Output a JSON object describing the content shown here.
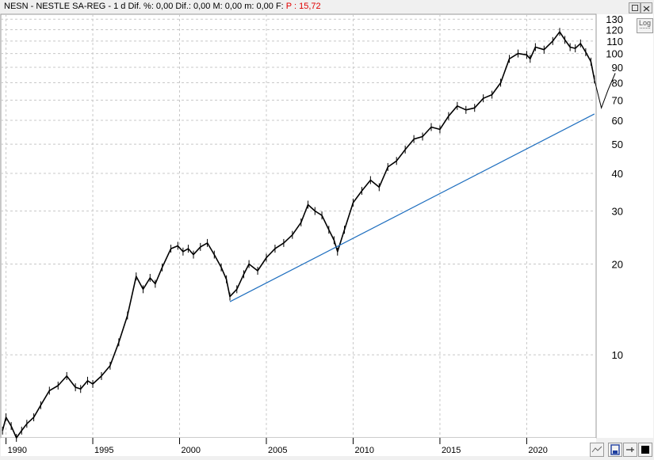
{
  "header": {
    "title": "NESN - NESTLE SA-REG -  1 d  Dif. %: 0,00  Dif.: 0,00  M: 0,00  m: 0,00  F:",
    "p_label": "P : 15,72"
  },
  "log_button": "Log",
  "colors": {
    "price": "#000000",
    "trendline": "#1f6fbf",
    "grid": "#c8c8c8",
    "pvalue": "#e00000"
  },
  "icons": [
    "restore-icon",
    "close-icon",
    "zoom-icon",
    "save-icon",
    "pin-icon",
    "color-swatch-icon"
  ],
  "chart_data": {
    "type": "line",
    "scale": "log",
    "grid": true,
    "ylim": [
      5.3,
      135
    ],
    "xlim": [
      1989.7,
      2024.0
    ],
    "y_ticks": [
      130,
      120,
      110,
      100,
      90,
      80,
      70,
      60,
      50,
      40,
      30,
      20,
      10
    ],
    "x_ticks": [
      "1990",
      "1995",
      "2000",
      "2005",
      "2010",
      "2015",
      "2020"
    ],
    "series": [
      {
        "x": [
          1989.8,
          1990.0,
          1990.3,
          1990.6,
          1990.9,
          1991.2,
          1991.6,
          1992.0,
          1992.5,
          1993.0,
          1993.5,
          1994.0,
          1994.3,
          1994.7,
          1995.0,
          1995.5,
          1996.0,
          1996.5,
          1997.0,
          1997.5,
          1997.9,
          1998.3,
          1998.6,
          1999.0,
          1999.5,
          1999.9,
          2000.2,
          2000.5,
          2000.8,
          2001.2,
          2001.6,
          2002.0,
          2002.4,
          2002.7,
          2002.9,
          2003.3,
          2003.7,
          2004.0,
          2004.5,
          2005.0,
          2005.5,
          2006.0,
          2006.5,
          2007.0,
          2007.4,
          2007.8,
          2008.2,
          2008.6,
          2008.9,
          2009.1,
          2009.5,
          2010.0,
          2010.5,
          2011.0,
          2011.5,
          2012.0,
          2012.5,
          2013.0,
          2013.5,
          2014.0,
          2014.5,
          2015.0,
          2015.5,
          2016.0,
          2016.5,
          2017.0,
          2017.5,
          2018.0,
          2018.5,
          2019.0,
          2019.5,
          2020.0,
          2020.2,
          2020.5,
          2021.0,
          2021.5,
          2021.9,
          2022.2,
          2022.5,
          2022.8,
          2023.1,
          2023.4,
          2023.7,
          2023.9
        ],
        "y": [
          5.6,
          6.2,
          5.8,
          5.3,
          5.6,
          5.9,
          6.2,
          6.8,
          7.6,
          7.9,
          8.5,
          7.8,
          7.7,
          8.2,
          8.0,
          8.5,
          9.2,
          11.0,
          13.5,
          18.2,
          16.5,
          18.0,
          17.2,
          19.5,
          22.5,
          23.0,
          22.0,
          22.5,
          21.5,
          22.8,
          23.5,
          21.5,
          19.5,
          17.8,
          15.6,
          16.5,
          18.5,
          20.0,
          19.0,
          21.0,
          22.5,
          23.5,
          25.0,
          27.5,
          31.5,
          30.0,
          29.0,
          26.0,
          24.0,
          22.0,
          26.0,
          32.0,
          35.0,
          38.0,
          36.0,
          42.0,
          44.0,
          48.0,
          52.0,
          53.0,
          57.0,
          56.0,
          62.0,
          67.0,
          65.0,
          66.0,
          71.0,
          73.0,
          80.0,
          96.0,
          100.0,
          99.0,
          96.0,
          105.0,
          103.0,
          110.0,
          118.0,
          111.0,
          105.0,
          104.0,
          108.0,
          101.0,
          94.0,
          82.0
        ]
      },
      {
        "x": [
          2002.9,
          2023.9
        ],
        "y": [
          15.0,
          63.0
        ]
      }
    ],
    "projection": {
      "x": [
        2023.9,
        2024.3,
        2024.7,
        2025.1
      ],
      "y": [
        82.0,
        66.0,
        76.0,
        86.0
      ]
    }
  }
}
